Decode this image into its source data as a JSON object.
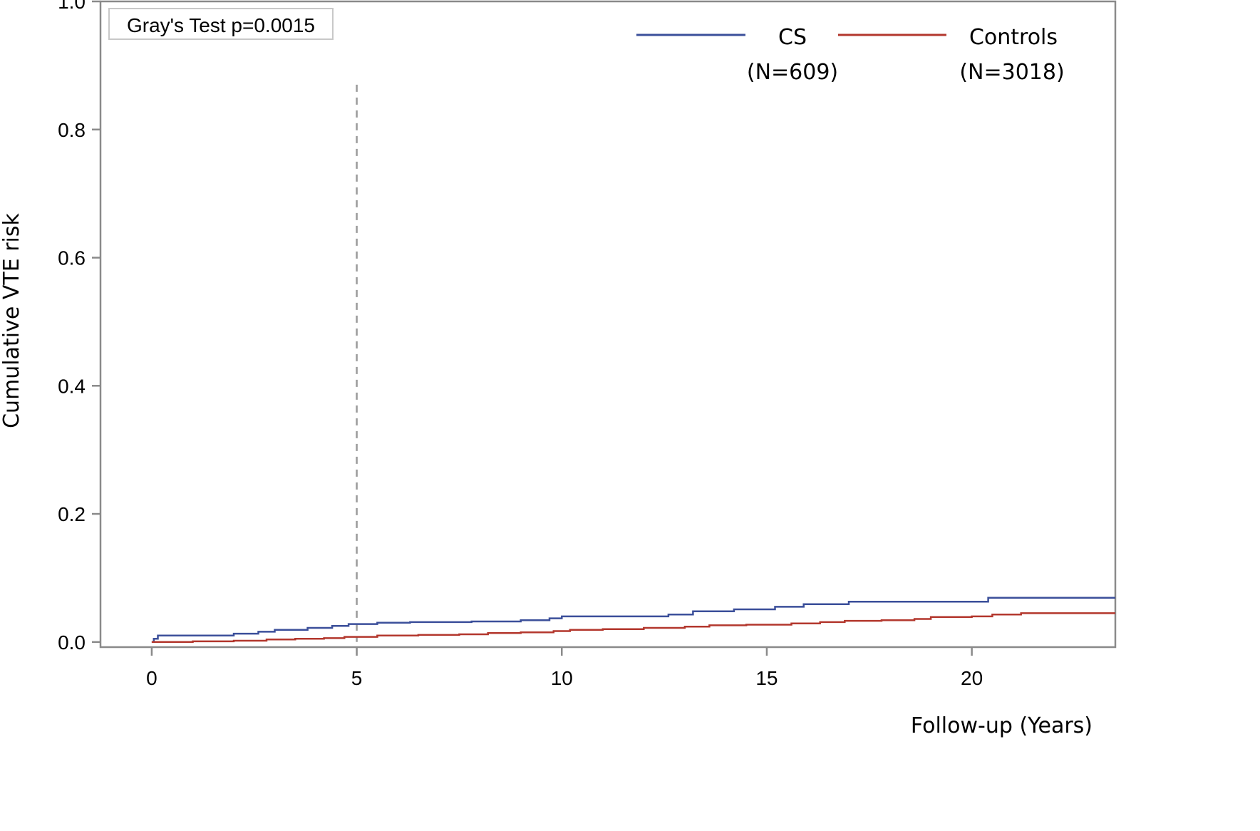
{
  "chart_data": {
    "type": "line",
    "title": "",
    "xlabel": "Follow-up (Years)",
    "ylabel": "Cumulative VTE risk",
    "xlim": [
      -1.25,
      23.5
    ],
    "ylim": [
      -0.008,
      1.0
    ],
    "x_ticks": [
      0,
      5,
      10,
      15,
      20
    ],
    "x_tick_labels": [
      "0",
      "5",
      "10",
      "15",
      "20"
    ],
    "y_ticks": [
      0.0,
      0.2,
      0.4,
      0.6,
      0.8,
      1.0
    ],
    "y_tick_labels": [
      "0.0",
      "0.2",
      "0.4",
      "0.6",
      "0.8",
      "1.0"
    ],
    "grid": false,
    "step": true,
    "annotation": "Gray's Test p=0.0015",
    "reference_line": {
      "x": 5,
      "y_max": 0.87,
      "style": "dashed"
    },
    "legend": {
      "position": "top-right",
      "entries": [
        {
          "line1": "CS",
          "line2": "(N=609)"
        },
        {
          "line1": "Controls",
          "line2": "(N=3018)"
        }
      ]
    },
    "series": [
      {
        "name": "CS",
        "color": "#3b4f9a",
        "points": [
          [
            0,
            0.0
          ],
          [
            0.05,
            0.005
          ],
          [
            0.15,
            0.01
          ],
          [
            1.9,
            0.01
          ],
          [
            2.0,
            0.013
          ],
          [
            2.6,
            0.016
          ],
          [
            3.0,
            0.019
          ],
          [
            3.8,
            0.022
          ],
          [
            4.4,
            0.025
          ],
          [
            4.8,
            0.028
          ],
          [
            5.5,
            0.03
          ],
          [
            6.3,
            0.031
          ],
          [
            7.8,
            0.032
          ],
          [
            9.0,
            0.034
          ],
          [
            9.7,
            0.037
          ],
          [
            10.0,
            0.04
          ],
          [
            12.6,
            0.043
          ],
          [
            13.2,
            0.048
          ],
          [
            14.2,
            0.051
          ],
          [
            15.2,
            0.055
          ],
          [
            15.9,
            0.059
          ],
          [
            17.0,
            0.063
          ],
          [
            20.4,
            0.069
          ],
          [
            23.5,
            0.069
          ]
        ]
      },
      {
        "name": "Controls",
        "color": "#b3372d",
        "points": [
          [
            0,
            0.0
          ],
          [
            1.0,
            0.001
          ],
          [
            2.0,
            0.002
          ],
          [
            2.8,
            0.004
          ],
          [
            3.5,
            0.005
          ],
          [
            4.2,
            0.006
          ],
          [
            4.7,
            0.008
          ],
          [
            5.5,
            0.01
          ],
          [
            6.5,
            0.011
          ],
          [
            7.5,
            0.012
          ],
          [
            8.2,
            0.014
          ],
          [
            9.0,
            0.015
          ],
          [
            9.8,
            0.017
          ],
          [
            10.2,
            0.019
          ],
          [
            11.0,
            0.02
          ],
          [
            12.0,
            0.022
          ],
          [
            13.0,
            0.024
          ],
          [
            13.6,
            0.026
          ],
          [
            14.5,
            0.027
          ],
          [
            15.6,
            0.029
          ],
          [
            16.3,
            0.031
          ],
          [
            16.9,
            0.033
          ],
          [
            17.8,
            0.034
          ],
          [
            18.6,
            0.036
          ],
          [
            19.0,
            0.039
          ],
          [
            20.0,
            0.04
          ],
          [
            20.5,
            0.043
          ],
          [
            21.2,
            0.045
          ],
          [
            23.5,
            0.045
          ]
        ]
      }
    ]
  }
}
